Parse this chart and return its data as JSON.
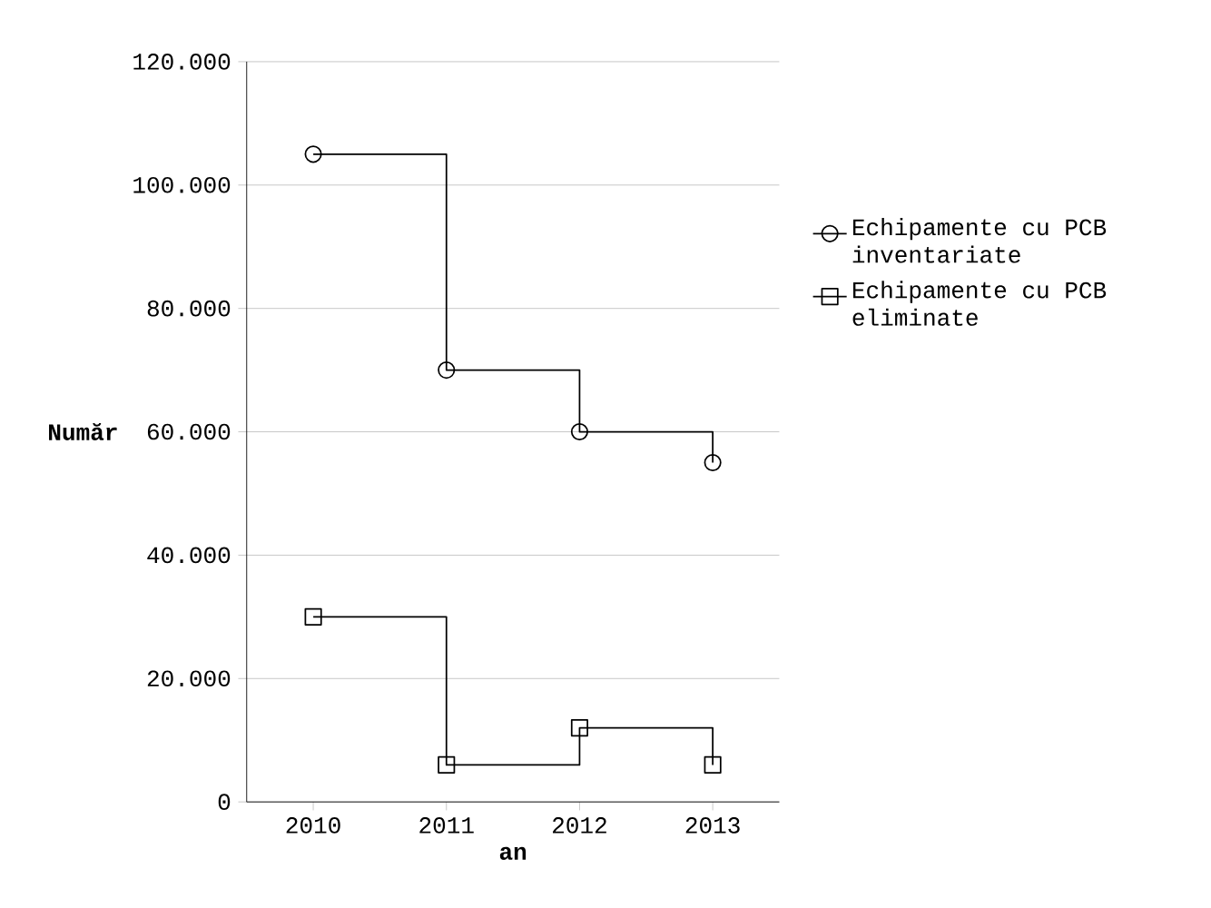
{
  "chart_data": {
    "type": "step",
    "xlabel": "an",
    "ylabel": "Număr",
    "categories": [
      "2010",
      "2011",
      "2012",
      "2013"
    ],
    "series": [
      {
        "name": "Echipamente cu PCB inventariate",
        "color": "#000000",
        "marker": "circle",
        "values": [
          105000,
          70000,
          60000,
          55000
        ]
      },
      {
        "name": "Echipamente cu PCB eliminate",
        "color": "#000000",
        "marker": "square",
        "values": [
          30000,
          6000,
          12000,
          6000
        ]
      }
    ],
    "ylim": [
      0,
      120000
    ],
    "yticks": [
      {
        "value": 0,
        "label": "0"
      },
      {
        "value": 20000,
        "label": "20.000"
      },
      {
        "value": 40000,
        "label": "40.000"
      },
      {
        "value": 60000,
        "label": "60.000"
      },
      {
        "value": 80000,
        "label": "80.000"
      },
      {
        "value": 100000,
        "label": "100.000"
      },
      {
        "value": 120000,
        "label": "120.000"
      }
    ],
    "grid": "y",
    "legend": "right"
  }
}
